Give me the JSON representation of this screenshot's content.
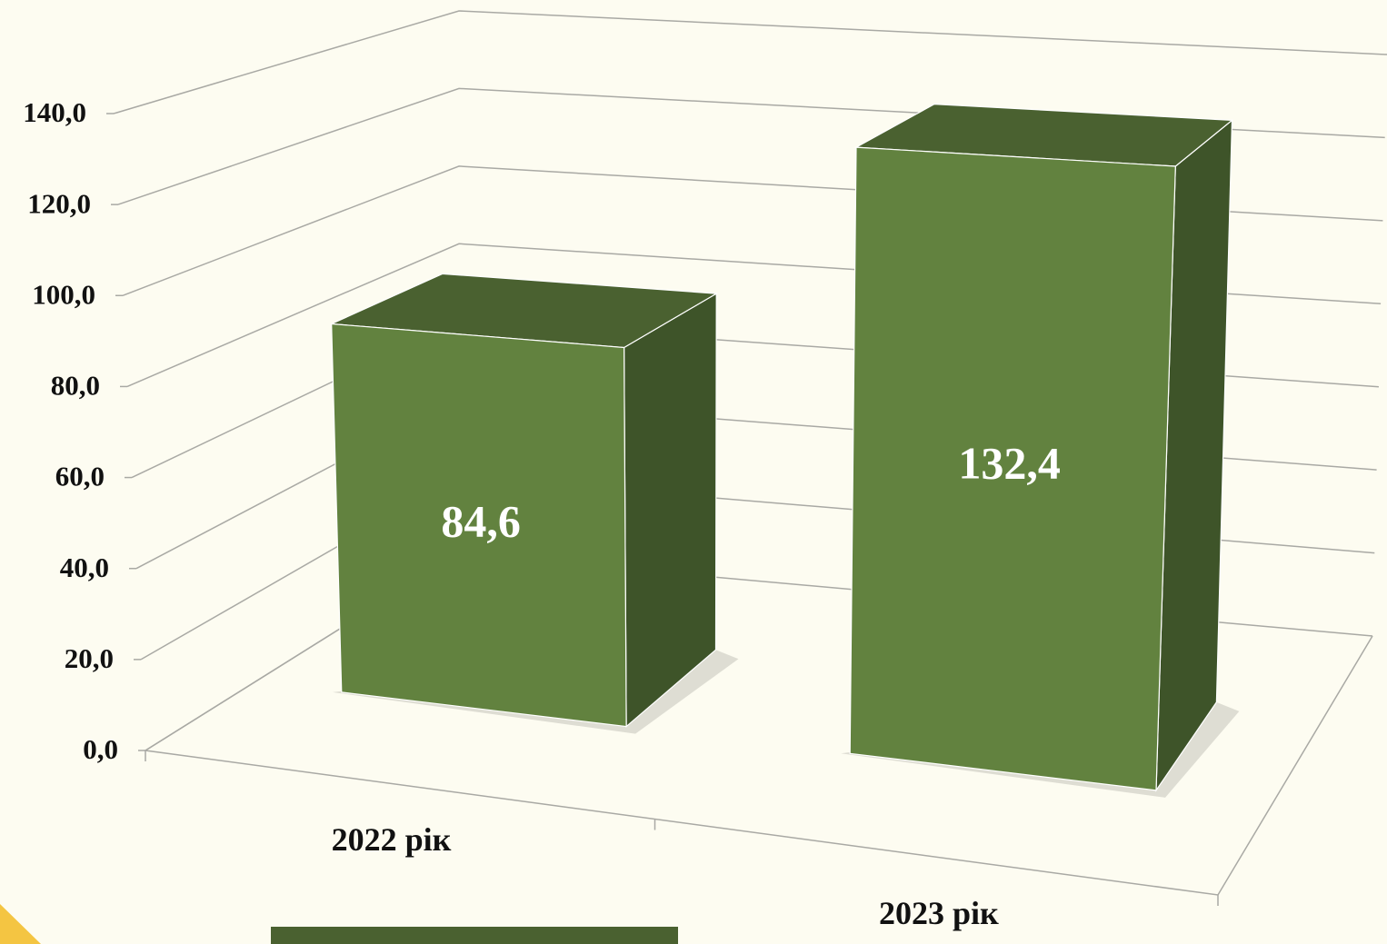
{
  "chart_data": {
    "type": "bar3d",
    "categories": [
      "2022 рік",
      "2023 рік"
    ],
    "values": [
      84.6,
      132.4
    ],
    "value_labels": [
      "84,6",
      "132,4"
    ],
    "color": "#62823f",
    "ylim": [
      0,
      140
    ],
    "yticks": [
      {
        "value": 0,
        "label": "0,0"
      },
      {
        "value": 20,
        "label": "20,0"
      },
      {
        "value": 40,
        "label": "40,0"
      },
      {
        "value": 60,
        "label": "60,0"
      },
      {
        "value": 80,
        "label": "80,0"
      },
      {
        "value": 100,
        "label": "100,0"
      },
      {
        "value": 120,
        "label": "120,0"
      },
      {
        "value": 140,
        "label": "140,0"
      }
    ],
    "grid": true
  }
}
